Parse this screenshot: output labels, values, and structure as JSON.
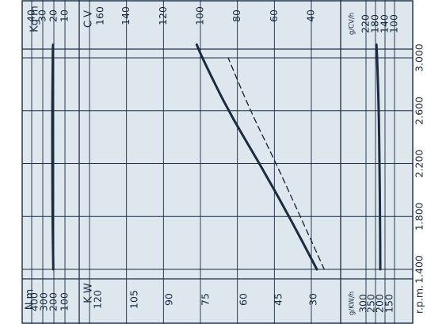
{
  "chart_data": {
    "type": "line",
    "rpm_axis": {
      "label": "r.p.m.",
      "ticks": [
        1400,
        1800,
        2200,
        2600,
        3000
      ],
      "tick_labels": [
        "1.400",
        "1.800",
        "2.200",
        "2.600",
        "3.000"
      ],
      "range": [
        1340,
        3200
      ]
    },
    "power_axis": {
      "cv_label": "C V",
      "cv_ticks": [
        40,
        60,
        80,
        100,
        120,
        140,
        160
      ],
      "kw_label": "K W",
      "kw_ticks": [
        30,
        45,
        60,
        75,
        90,
        105,
        120
      ],
      "cv_range": [
        28.5,
        165
      ]
    },
    "torque_axis": {
      "kgm_label": "Kg m",
      "kgm_ticks": [
        10,
        20,
        30,
        40
      ],
      "nm_label": "N m",
      "nm_ticks": [
        100,
        200,
        300,
        400
      ]
    },
    "consumption_axis": {
      "gcvh_label": "g/CV/h",
      "gcvh_ticks": [
        100,
        140,
        180,
        220
      ],
      "gkwh_label": "g/KW/h",
      "gkwh_ticks": [
        150,
        200,
        250,
        300
      ]
    },
    "series": [
      {
        "name": "",
        "unit": "Kg m",
        "style": "solid",
        "points": [
          [
            1400,
            20.5
          ],
          [
            1800,
            21.2
          ],
          [
            2200,
            21.4
          ],
          [
            2600,
            21.4
          ],
          [
            3000,
            21.0
          ],
          [
            3100,
            20.8
          ]
        ]
      },
      {
        "name": "",
        "unit": "C V",
        "style": "solid",
        "points": [
          [
            1400,
            37
          ],
          [
            1800,
            52
          ],
          [
            2200,
            68
          ],
          [
            2600,
            85
          ],
          [
            3000,
            99
          ],
          [
            3100,
            102
          ]
        ]
      },
      {
        "name": "",
        "unit": "C V",
        "style": "dashed",
        "points": [
          [
            1400,
            33
          ],
          [
            1800,
            46
          ],
          [
            2200,
            59
          ],
          [
            2600,
            73
          ],
          [
            3000,
            85
          ]
        ]
      },
      {
        "name": "",
        "unit": "g/CV/h",
        "style": "solid",
        "points": [
          [
            1400,
            160
          ],
          [
            1800,
            161
          ],
          [
            2200,
            163
          ],
          [
            2600,
            166
          ],
          [
            3000,
            173
          ],
          [
            3100,
            176
          ]
        ]
      }
    ],
    "grid": true,
    "orientation": "rotated-90"
  },
  "colors": {
    "background": "#ffffff",
    "panel": "#dfe7ee",
    "grid": "#1a2c40",
    "curve": "#1a2c40",
    "text": "#1a2c40"
  }
}
